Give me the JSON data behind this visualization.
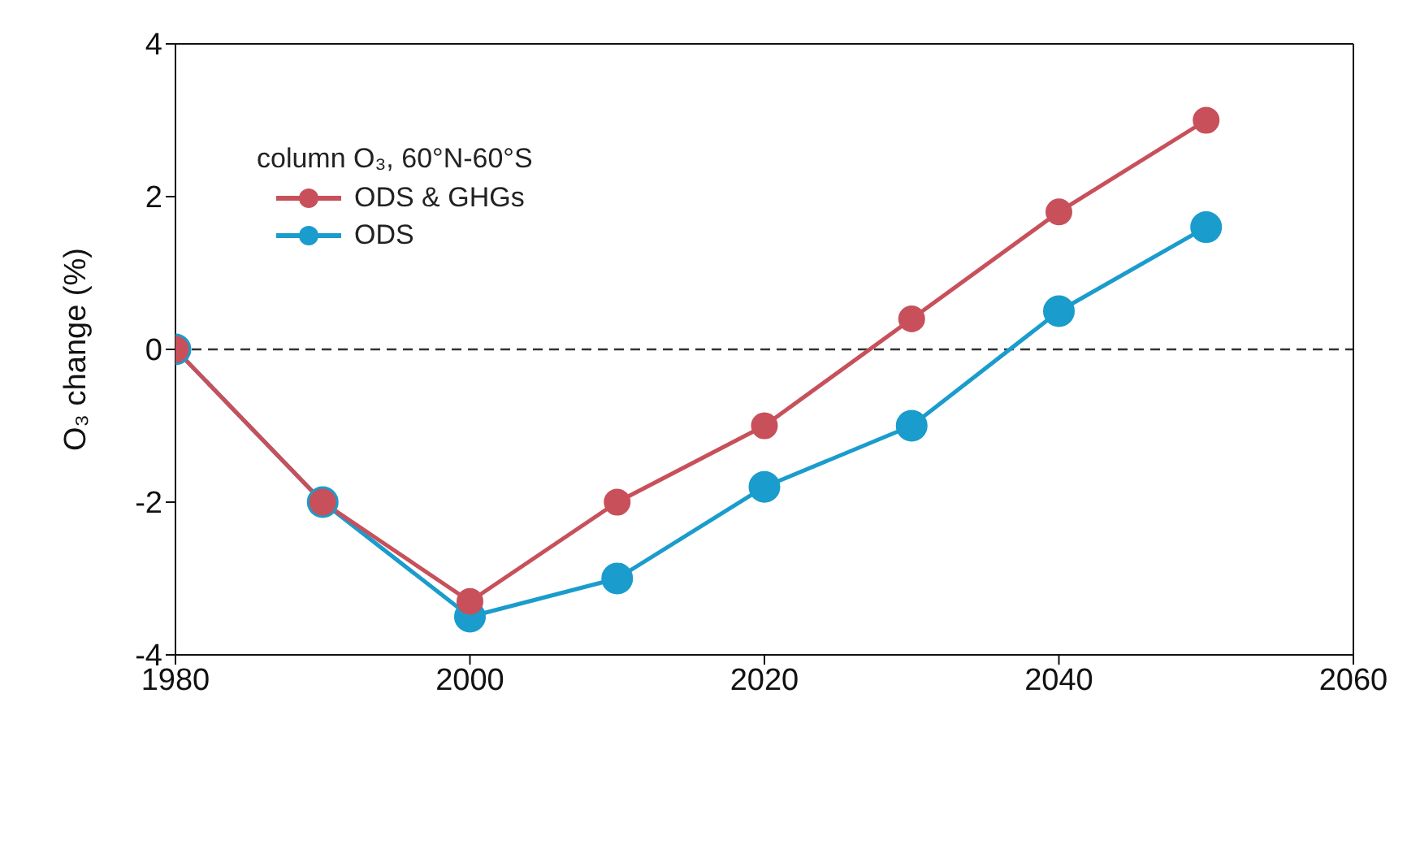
{
  "chart_data": {
    "type": "line",
    "ylabel": "O₃ change (%)",
    "legend_title": "column O₃, 60°N-60°S",
    "x": [
      1980,
      1990,
      2000,
      2010,
      2020,
      2030,
      2040,
      2050
    ],
    "series": [
      {
        "name": "ODS & GHGs",
        "color": "#c8505a",
        "values": [
          0,
          -2,
          -3.3,
          -2,
          -1,
          0.4,
          1.8,
          3.0
        ]
      },
      {
        "name": "ODS",
        "color": "#1a9ccc",
        "values": [
          0,
          -2,
          -3.5,
          -3.0,
          -1.8,
          -1.0,
          0.5,
          1.6
        ]
      }
    ],
    "xlim": [
      1980,
      2060
    ],
    "xticks": [
      1980,
      2000,
      2020,
      2040,
      2060
    ],
    "ylim": [
      -4,
      4
    ],
    "yticks": [
      -4,
      -2,
      0,
      2,
      4
    ],
    "ref_lines": [
      {
        "axis": "y",
        "value": 0,
        "line_style": "dashed",
        "color": "#333333"
      }
    ],
    "grid": false,
    "legend": "top left",
    "marker": "circle",
    "line_style": "solid"
  }
}
